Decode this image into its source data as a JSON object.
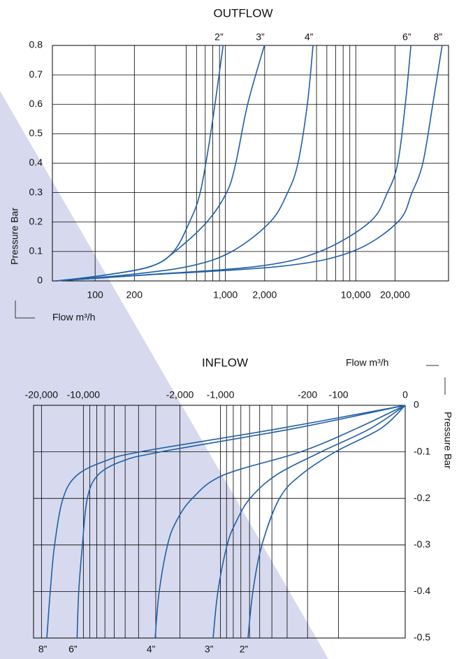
{
  "chart_data": [
    {
      "type": "line",
      "title": "OUTFLOW",
      "xlabel": "Flow  m³/h",
      "ylabel": "Pressure Bar",
      "xscale": "log",
      "xlim": [
        47,
        51500
      ],
      "ylim": [
        0,
        0.8
      ],
      "xticks": [
        100,
        200,
        {
          "value": 1000,
          "label": "1,000"
        },
        {
          "value": 2000,
          "label": "2,000"
        },
        {
          "value": 10000,
          "label": "10,000"
        },
        {
          "value": 20000,
          "label": "20,000"
        }
      ],
      "xgrid": [
        500,
        600,
        700,
        800,
        900,
        5000,
        6000,
        7000,
        8000,
        9000
      ],
      "yticks": [
        0,
        0.1,
        0.2,
        0.3,
        0.4,
        0.5,
        0.6,
        0.7,
        0.8
      ],
      "series": [
        {
          "name": "2”",
          "color": "#1f5fa6",
          "x": [
            50,
            120,
            270,
            400,
            530,
            640,
            770,
            960
          ],
          "values": [
            0,
            0.02,
            0.05,
            0.1,
            0.2,
            0.3,
            0.5,
            0.8
          ]
        },
        {
          "name": "3”",
          "color": "#1f5fa6",
          "x": [
            50,
            120,
            270,
            410,
            720,
            1020,
            1200,
            1480,
            1990
          ],
          "values": [
            0,
            0.02,
            0.05,
            0.1,
            0.2,
            0.3,
            0.4,
            0.6,
            0.8
          ]
        },
        {
          "name": "4”",
          "color": "#1f5fa6",
          "x": [
            50,
            170,
            530,
            1120,
            2200,
            3000,
            3600,
            4250,
            4700
          ],
          "values": [
            0,
            0.02,
            0.05,
            0.1,
            0.2,
            0.3,
            0.4,
            0.6,
            0.8
          ]
        },
        {
          "name": "6”",
          "color": "#1f5fa6",
          "x": [
            50,
            230,
            1800,
            5300,
            12800,
            17500,
            21000,
            24000,
            26500
          ],
          "values": [
            0,
            0.02,
            0.05,
            0.1,
            0.2,
            0.3,
            0.4,
            0.6,
            0.8
          ]
        },
        {
          "name": "8”",
          "color": "#1f5fa6",
          "x": [
            50,
            240,
            2700,
            9400,
            21000,
            27000,
            32700,
            39000,
            46000
          ],
          "values": [
            0,
            0.02,
            0.05,
            0.1,
            0.2,
            0.3,
            0.4,
            0.6,
            0.8
          ]
        }
      ]
    },
    {
      "type": "line",
      "title": "INFLOW",
      "xlabel": "Flow  m³/h",
      "ylabel": "Pressure Bar",
      "xscale": "symlog",
      "xlim": [
        -22800,
        0
      ],
      "ylim": [
        -0.5,
        0
      ],
      "xticks": [
        {
          "value": -20000,
          "label": "-20,000"
        },
        {
          "value": -10000,
          "label": "-10,000"
        },
        {
          "value": -2000,
          "label": "-2,000"
        },
        {
          "value": -1000,
          "label": "-1,000"
        },
        -200,
        -100,
        0
      ],
      "xgrid": [
        -9000,
        -8000,
        -7000,
        -6000,
        -5000,
        -4000,
        -3000,
        -900,
        -800,
        -700,
        -600,
        -500,
        -400,
        -300
      ],
      "yticks": [
        0,
        -0.1,
        -0.2,
        -0.3,
        -0.4,
        -0.5
      ],
      "series": [
        {
          "name": "8”",
          "color": "#1f5fa6",
          "x": [
            0,
            -350,
            -3900,
            -7000,
            -11100,
            -14000,
            -16100,
            -17300,
            -18300
          ],
          "values": [
            0,
            -0.05,
            -0.1,
            -0.12,
            -0.15,
            -0.2,
            -0.3,
            -0.4,
            -0.5
          ]
        },
        {
          "name": "6”",
          "color": "#1f5fa6",
          "x": [
            0,
            -265,
            -2760,
            -5250,
            -7870,
            -9370,
            -10160,
            -10800,
            -11100
          ],
          "values": [
            0,
            -0.05,
            -0.1,
            -0.12,
            -0.15,
            -0.2,
            -0.3,
            -0.4,
            -0.5
          ]
        },
        {
          "name": "4”",
          "color": "#1f5fa6",
          "x": [
            0,
            -62,
            -230,
            -950,
            -1620,
            -2130,
            -2460,
            -2830,
            -3030
          ],
          "values": [
            0,
            -0.05,
            -0.1,
            -0.15,
            -0.2,
            -0.25,
            -0.3,
            -0.4,
            -0.5
          ]
        },
        {
          "name": "3”",
          "color": "#1f5fa6",
          "x": [
            0,
            -39,
            -150,
            -370,
            -595,
            -760,
            -890,
            -1045,
            -1135
          ],
          "values": [
            0,
            -0.05,
            -0.1,
            -0.15,
            -0.2,
            -0.25,
            -0.3,
            -0.4,
            -0.5
          ]
        },
        {
          "name": "2”",
          "color": "#1f5fa6",
          "x": [
            0,
            -25,
            -108,
            -230,
            -347,
            -480,
            -565,
            -617
          ],
          "values": [
            0,
            -0.05,
            -0.1,
            -0.15,
            -0.2,
            -0.3,
            -0.4,
            -0.5
          ]
        }
      ]
    }
  ]
}
